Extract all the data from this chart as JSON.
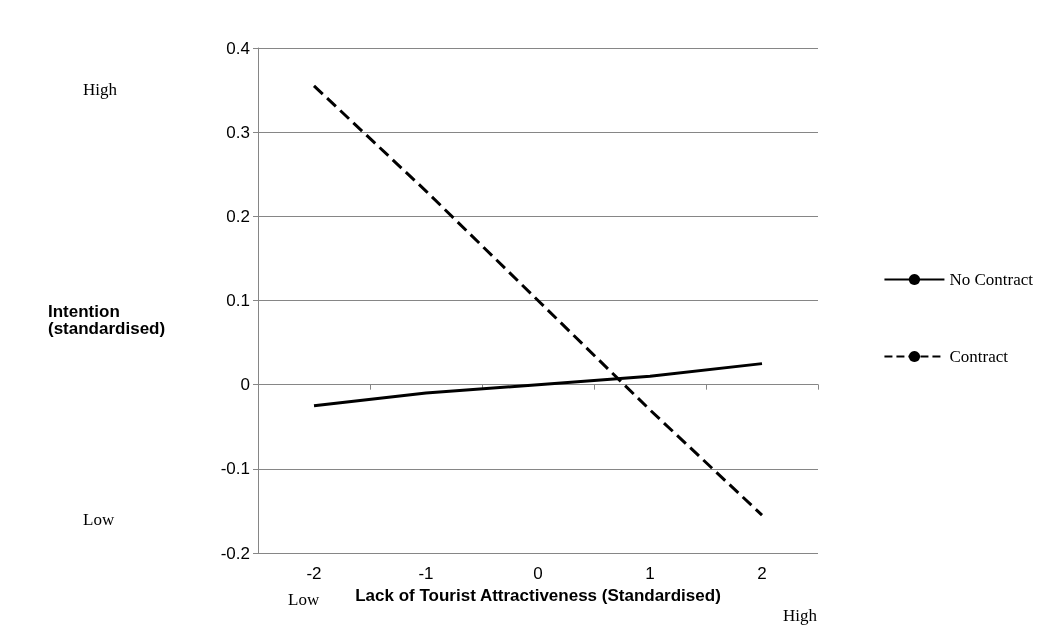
{
  "chart_data": {
    "type": "line",
    "xlabel": "Lack of Tourist Attractiveness (Standardised)",
    "ylabel": "Intention (standardised)",
    "categories": [
      "-2",
      "-1",
      "0",
      "1",
      "2"
    ],
    "series": [
      {
        "name": "No Contract",
        "color": "#000000",
        "line_style": "solid",
        "values": [
          -0.025,
          -0.01,
          0,
          0.01,
          0.025
        ]
      },
      {
        "name": "Contract",
        "color": "#000000",
        "line_style": "dashed",
        "values": [
          0.355,
          0.23,
          0.1,
          -0.03,
          -0.155
        ]
      }
    ],
    "ylim": [
      -0.2,
      0.4
    ],
    "yticks": [
      -0.2,
      -0.1,
      0,
      0.1,
      0.2,
      0.3,
      0.4
    ],
    "grid": "y",
    "legend": "right",
    "marker": "none",
    "annotations": [
      "High",
      "Low",
      "Low",
      "High"
    ]
  }
}
